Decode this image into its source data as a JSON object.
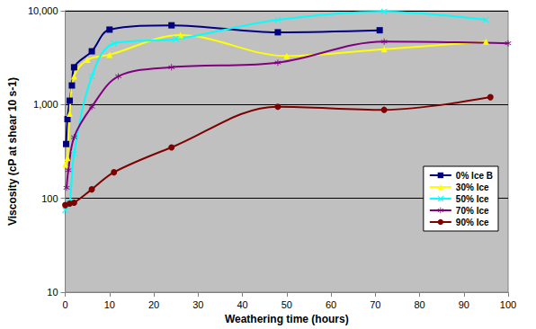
{
  "chart_data": {
    "type": "line",
    "x_label": "Weathering time (hours)",
    "y_label": "Viscosity (cP at shear 10 s-1)",
    "log": "y",
    "grid": true,
    "legend": "right",
    "line_style": "smooth",
    "xlim": [
      0,
      100
    ],
    "xticks": [
      0,
      10,
      20,
      30,
      40,
      50,
      60,
      70,
      80,
      90,
      100
    ],
    "ylim": [
      10,
      10000
    ],
    "yticks": [
      10,
      100,
      1000,
      10000
    ],
    "series": [
      {
        "name": "0% Ice B",
        "color": "#000080",
        "marker": "square",
        "x": [
          0.2,
          0.5,
          1,
          1.5,
          2,
          6,
          10,
          24,
          48,
          71
        ],
        "values": [
          380,
          700,
          1100,
          1600,
          2500,
          3700,
          6300,
          7000,
          5900,
          6200
        ]
      },
      {
        "name": "30% Ice",
        "color": "#ffff00",
        "marker": "triangle",
        "x": [
          0,
          0.5,
          1,
          2,
          5,
          10,
          26,
          50,
          72,
          95
        ],
        "values": [
          230,
          270,
          800,
          2000,
          3000,
          3400,
          5500,
          3300,
          3900,
          4700
        ]
      },
      {
        "name": "50% Ice",
        "color": "#00ffff",
        "marker": "x",
        "x": [
          0,
          1,
          2,
          6,
          11,
          25,
          48,
          72,
          95
        ],
        "values": [
          75,
          90,
          300,
          2000,
          4500,
          5000,
          8000,
          9800,
          8000
        ]
      },
      {
        "name": "70% Ice",
        "color": "#800080",
        "marker": "star",
        "x": [
          0.3,
          0.7,
          2,
          6,
          12,
          24,
          48,
          72,
          100
        ],
        "values": [
          130,
          200,
          450,
          950,
          2000,
          2500,
          2800,
          4700,
          4500
        ]
      },
      {
        "name": "90% Ice",
        "color": "#800000",
        "marker": "circle",
        "x": [
          0,
          1,
          2,
          6,
          11,
          24,
          48,
          72,
          96
        ],
        "values": [
          85,
          88,
          90,
          125,
          190,
          350,
          950,
          880,
          1200
        ]
      }
    ]
  }
}
